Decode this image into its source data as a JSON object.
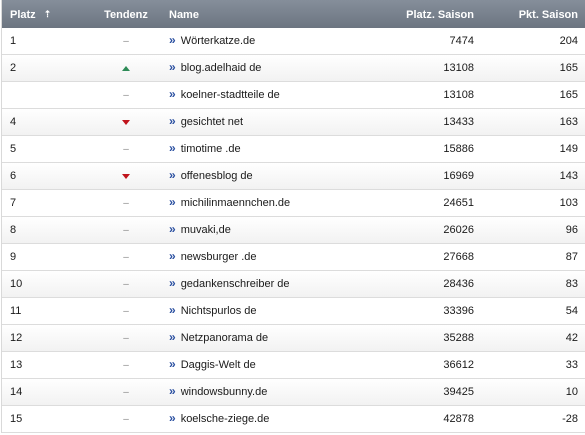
{
  "table": {
    "headers": {
      "platz": "Platz",
      "sort_icon": "sort-up-icon",
      "tendenz": "Tendenz",
      "name": "Name",
      "platz_saison": "Platz. Saison",
      "pkt_saison": "Pkt. Saison"
    },
    "colors": {
      "header_bg": "#7a838f",
      "trend_up": "#2e8b57",
      "trend_down": "#c0141c",
      "link_icon": "#2a4fa0"
    },
    "rows": [
      {
        "platz": "1",
        "trend": "none",
        "trend_text": "–",
        "name": "Wörterkatze.de",
        "platz_saison": "7474",
        "pkt_saison": "204"
      },
      {
        "platz": "2",
        "trend": "up",
        "trend_text": "",
        "name": "blog.adelhaid de",
        "platz_saison": "13108",
        "pkt_saison": "165"
      },
      {
        "platz": "",
        "trend": "none",
        "trend_text": "–",
        "name": "koelner-stadtteile de",
        "platz_saison": "13108",
        "pkt_saison": "165"
      },
      {
        "platz": "4",
        "trend": "down",
        "trend_text": "",
        "name": "gesichtet net",
        "platz_saison": "13433",
        "pkt_saison": "163"
      },
      {
        "platz": "5",
        "trend": "none",
        "trend_text": "–",
        "name": "timotime .de",
        "platz_saison": "15886",
        "pkt_saison": "149"
      },
      {
        "platz": "6",
        "trend": "down",
        "trend_text": "",
        "name": "offenesblog de",
        "platz_saison": "16969",
        "pkt_saison": "143"
      },
      {
        "platz": "7",
        "trend": "none",
        "trend_text": "–",
        "name": "michilinmaennchen.de",
        "platz_saison": "24651",
        "pkt_saison": "103"
      },
      {
        "platz": "8",
        "trend": "none",
        "trend_text": "–",
        "name": "muvaki,de",
        "platz_saison": "26026",
        "pkt_saison": "96"
      },
      {
        "platz": "9",
        "trend": "none",
        "trend_text": "–",
        "name": "newsburger .de",
        "platz_saison": "27668",
        "pkt_saison": "87"
      },
      {
        "platz": "10",
        "trend": "none",
        "trend_text": "–",
        "name": "gedankenschreiber de",
        "platz_saison": "28436",
        "pkt_saison": "83"
      },
      {
        "platz": "11",
        "trend": "none",
        "trend_text": "–",
        "name": "Nichtspurlos de",
        "platz_saison": "33396",
        "pkt_saison": "54"
      },
      {
        "platz": "12",
        "trend": "none",
        "trend_text": "–",
        "name": "Netzpanorama de",
        "platz_saison": "35288",
        "pkt_saison": "42"
      },
      {
        "platz": "13",
        "trend": "none",
        "trend_text": "–",
        "name": "Daggis-Welt de",
        "platz_saison": "36612",
        "pkt_saison": "33"
      },
      {
        "platz": "14",
        "trend": "none",
        "trend_text": "–",
        "name": "windowsbunny.de",
        "platz_saison": "39425",
        "pkt_saison": "10"
      },
      {
        "platz": "15",
        "trend": "none",
        "trend_text": "–",
        "name": "koelsche-ziege.de",
        "platz_saison": "42878",
        "pkt_saison": "-28"
      }
    ]
  }
}
